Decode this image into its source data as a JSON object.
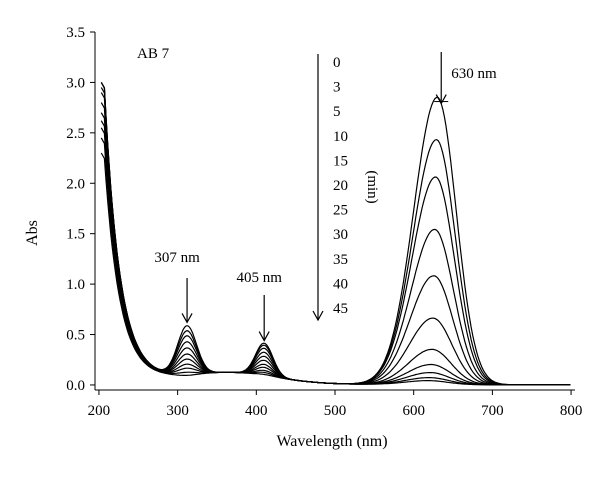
{
  "chart_data": {
    "type": "line",
    "title": "",
    "xlabel": "Wavelength (nm)",
    "ylabel": "Abs",
    "xlim": [
      195,
      805
    ],
    "ylim": [
      -0.05,
      3.5
    ],
    "xticks": [
      200,
      300,
      400,
      500,
      600,
      700,
      800
    ],
    "yticks": [
      0.0,
      0.5,
      1.0,
      1.5,
      2.0,
      2.5,
      3.0,
      3.5
    ],
    "ytick_labels": [
      "0.0",
      "0.5",
      "1.0",
      "1.5",
      "2.0",
      "2.5",
      "3.0",
      "3.5"
    ],
    "grid": false,
    "legend": "none",
    "panel_label": "AB 7",
    "time_unit_label": "(min)",
    "time_points": [
      "0",
      "3",
      "5",
      "10",
      "15",
      "20",
      "25",
      "30",
      "35",
      "40",
      "45"
    ],
    "annotations": [
      {
        "text": "307 nm",
        "x": 312,
        "y": 0.6
      },
      {
        "text": "405 nm",
        "x": 410,
        "y": 0.42
      },
      {
        "text": "630 nm",
        "x": 635,
        "y": 2.85
      }
    ],
    "series": [
      {
        "time_min": 0,
        "start_abs": 3.0,
        "peak_630": 2.85,
        "peak_307": 0.6,
        "peak_405": 0.42
      },
      {
        "time_min": 3,
        "start_abs": 3.0,
        "peak_630": 2.43,
        "peak_307": 0.55,
        "peak_405": 0.4
      },
      {
        "time_min": 5,
        "start_abs": 3.0,
        "peak_630": 2.06,
        "peak_307": 0.5,
        "peak_405": 0.37
      },
      {
        "time_min": 10,
        "start_abs": 2.95,
        "peak_630": 1.54,
        "peak_307": 0.44,
        "peak_405": 0.33
      },
      {
        "time_min": 15,
        "start_abs": 2.9,
        "peak_630": 1.08,
        "peak_307": 0.38,
        "peak_405": 0.29
      },
      {
        "time_min": 20,
        "start_abs": 2.8,
        "peak_630": 0.66,
        "peak_307": 0.32,
        "peak_405": 0.25
      },
      {
        "time_min": 25,
        "start_abs": 2.7,
        "peak_630": 0.35,
        "peak_307": 0.27,
        "peak_405": 0.21
      },
      {
        "time_min": 30,
        "start_abs": 2.62,
        "peak_630": 0.2,
        "peak_307": 0.22,
        "peak_405": 0.18
      },
      {
        "time_min": 35,
        "start_abs": 2.55,
        "peak_630": 0.12,
        "peak_307": 0.18,
        "peak_405": 0.15
      },
      {
        "time_min": 40,
        "start_abs": 2.45,
        "peak_630": 0.07,
        "peak_307": 0.14,
        "peak_405": 0.13
      },
      {
        "time_min": 45,
        "start_abs": 2.3,
        "peak_630": 0.04,
        "peak_307": 0.11,
        "peak_405": 0.11
      }
    ]
  }
}
